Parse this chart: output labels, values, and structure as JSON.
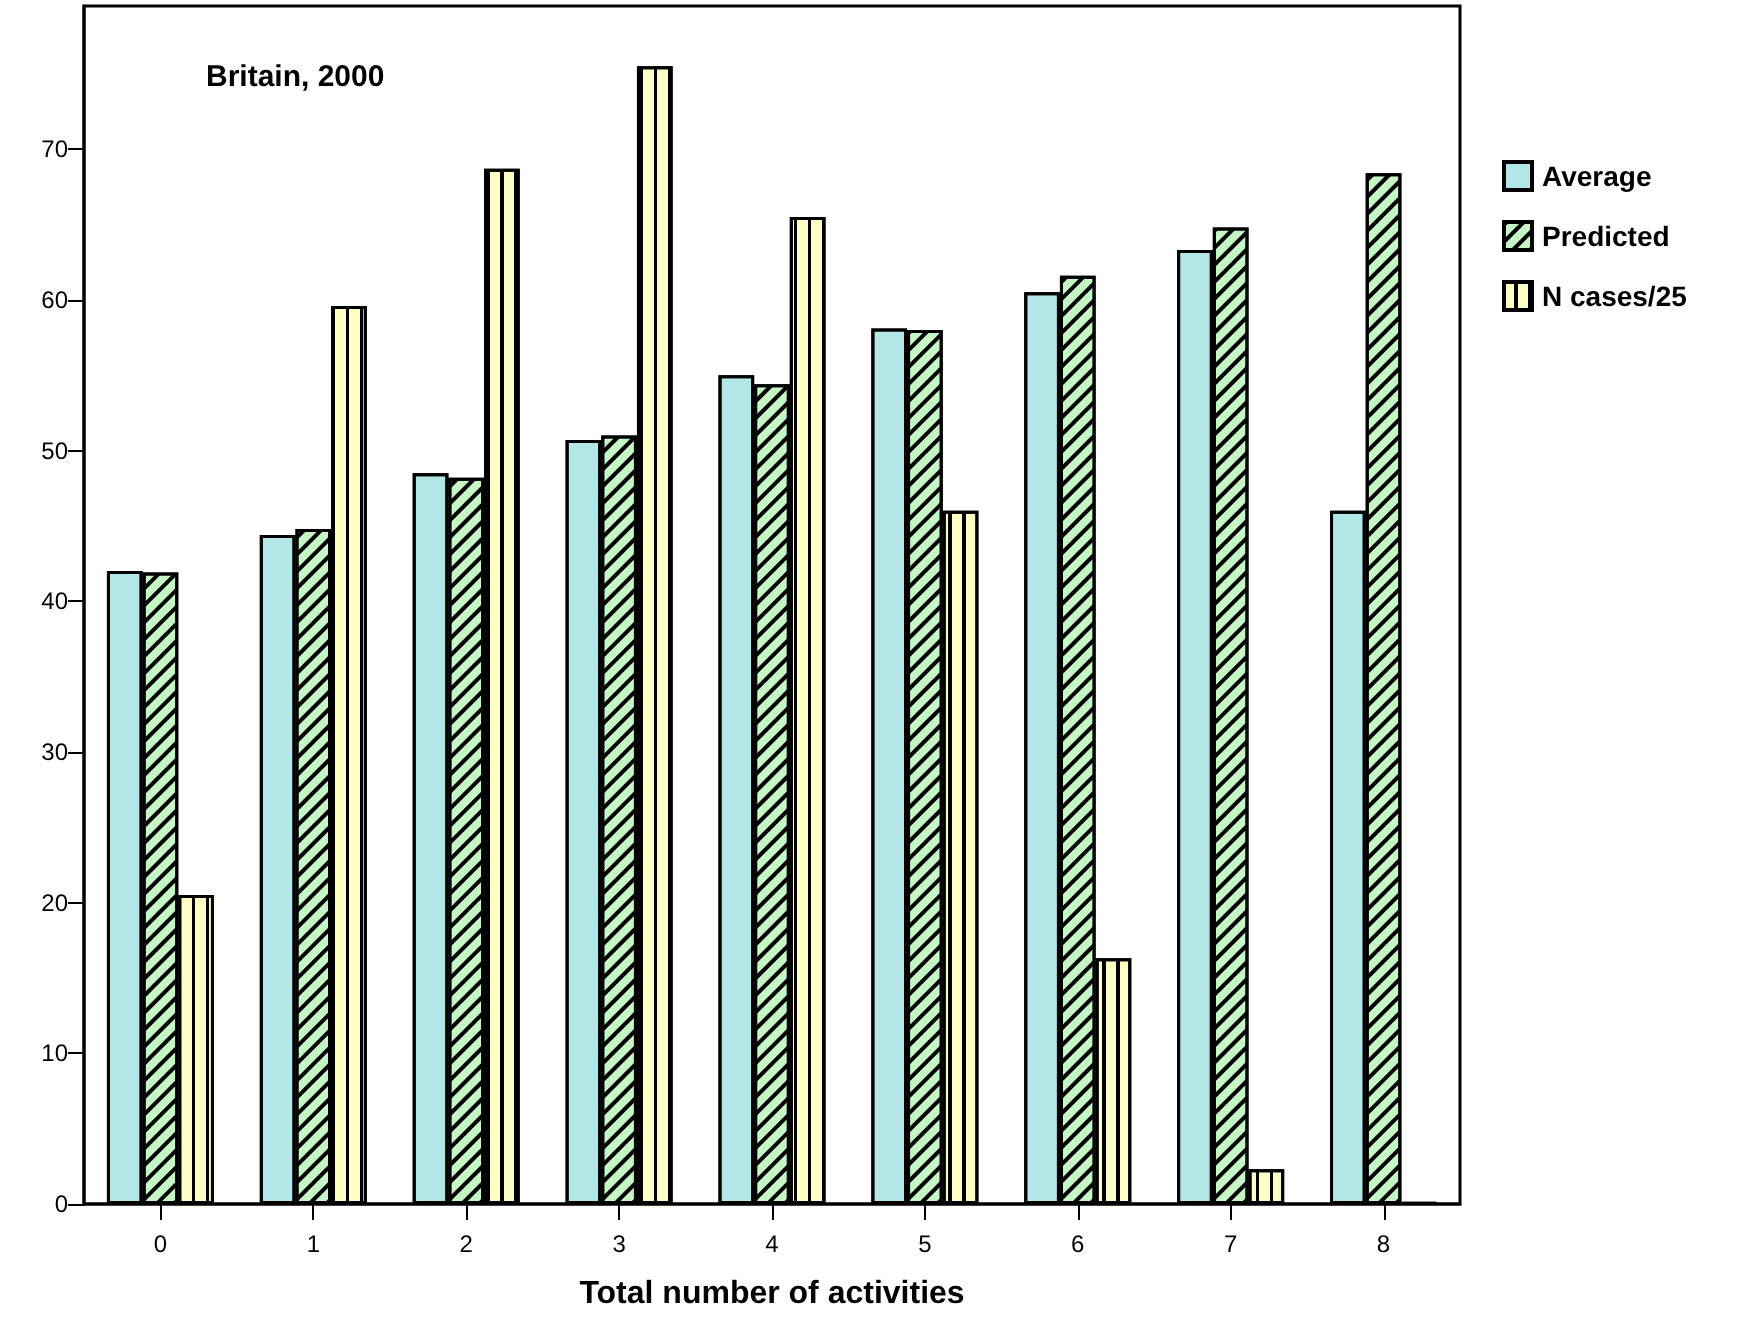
{
  "chart_data": {
    "type": "bar",
    "title": "Britain, 2000",
    "xlabel": "Total number of activities",
    "categories": [
      "0",
      "1",
      "2",
      "3",
      "4",
      "5",
      "6",
      "7",
      "8"
    ],
    "series": [
      {
        "name": "Average",
        "color": "#b3e6e6",
        "values": [
          42.0,
          44.4,
          48.5,
          50.7,
          55.0,
          58.1,
          60.5,
          63.3,
          46.0
        ]
      },
      {
        "name": "Predicted",
        "color": "#c6f5c6",
        "values": [
          41.9,
          44.8,
          48.2,
          51.0,
          54.4,
          58.0,
          61.6,
          64.8,
          68.4
        ]
      },
      {
        "name": "N cases/25",
        "color": "#fdfdc4",
        "values": [
          20.5,
          59.6,
          68.7,
          75.5,
          65.5,
          46.0,
          16.3,
          2.3,
          0.1
        ]
      }
    ],
    "ylim": [
      0,
      79.5
    ],
    "yticks": [
      0,
      10,
      20,
      30,
      40,
      50,
      60,
      70
    ],
    "grid": false,
    "legend": "right"
  }
}
